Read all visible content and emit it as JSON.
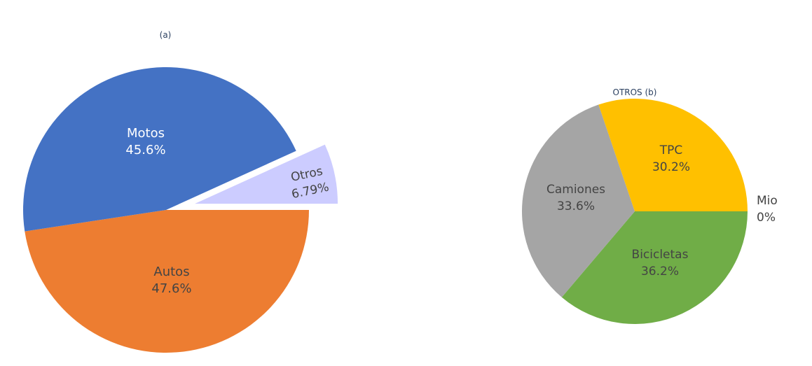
{
  "chart_data": [
    {
      "type": "pie",
      "title": "(a)",
      "labels": [
        "Autos",
        "Motos",
        "Otros"
      ],
      "values": [
        47.6,
        45.6,
        6.79
      ],
      "value_labels": [
        "47.6%",
        "45.6%",
        "6.79%"
      ],
      "colors": [
        "#ed7d31",
        "#4472c4",
        "#ccccff"
      ],
      "pulled": [
        "Otros"
      ],
      "label_colors": [
        "#444444",
        "#ffffff",
        "#444444"
      ]
    },
    {
      "type": "pie",
      "title": "OTROS (b)",
      "labels": [
        "Bicicletas",
        "Camiones",
        "TPC",
        "Mio"
      ],
      "values": [
        36.2,
        33.6,
        30.2,
        0
      ],
      "value_labels": [
        "36.2%",
        "33.6%",
        "30.2%",
        "0%"
      ],
      "colors": [
        "#70ad47",
        "#a5a5a5",
        "#ffc000",
        "#5b9bd5"
      ],
      "label_colors": [
        "#444444",
        "#444444",
        "#444444",
        "#444444"
      ]
    }
  ]
}
